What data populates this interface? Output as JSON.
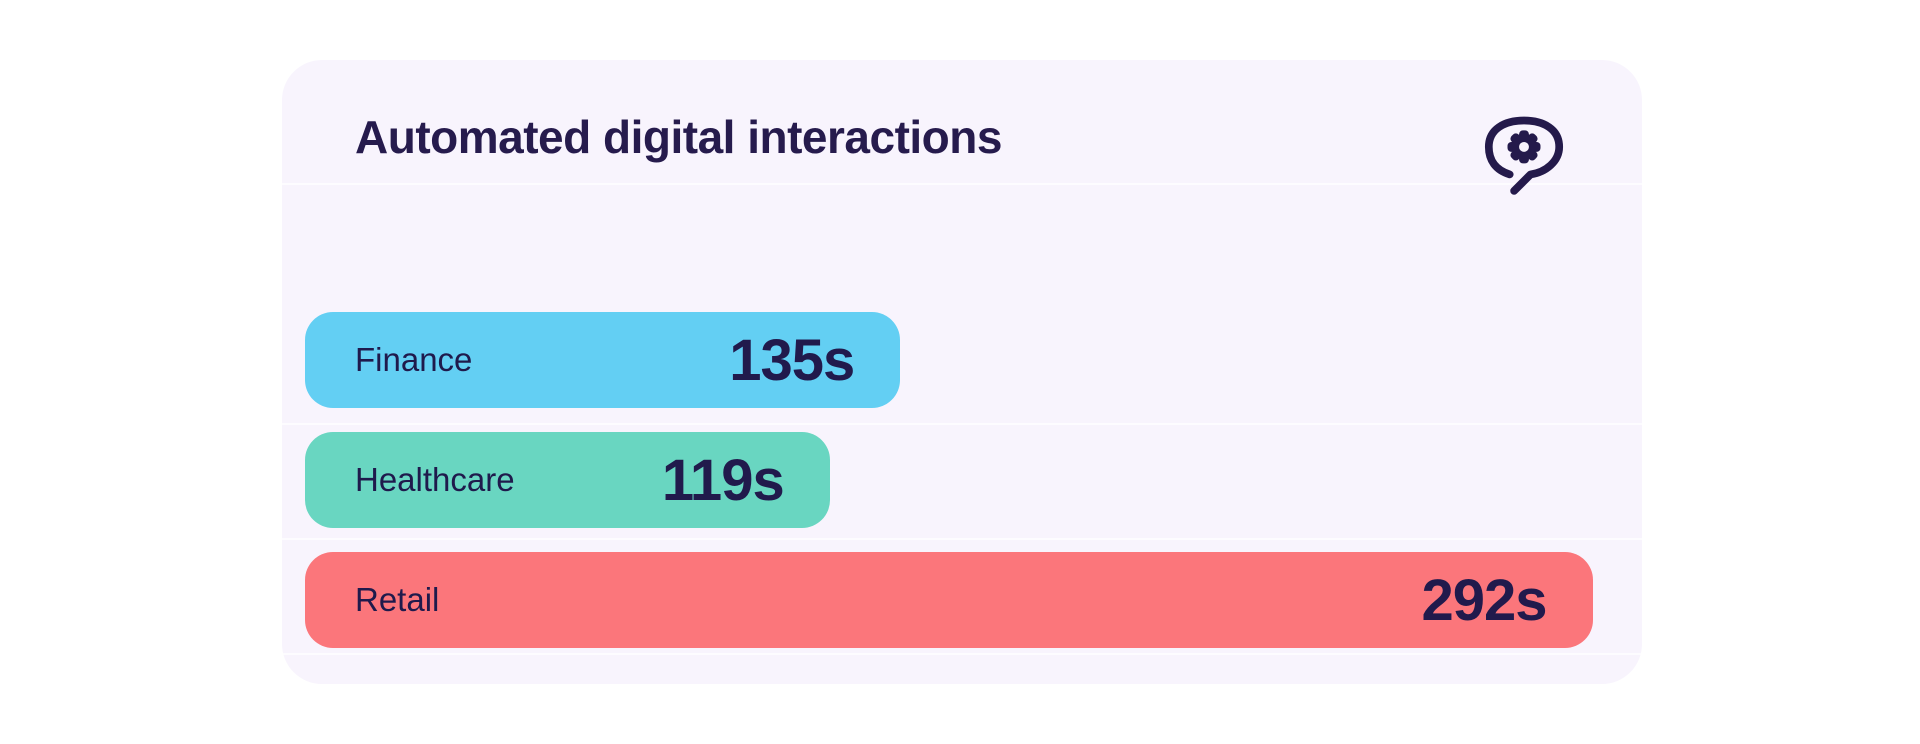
{
  "page": {
    "background_color": "#ffffff"
  },
  "card": {
    "background_color": "#f8f4fd",
    "title": "Automated digital interactions",
    "title_color": "#261b4d",
    "icon": "brain-gear-icon",
    "icon_color": "#241a4b"
  },
  "chart_data": {
    "type": "bar",
    "orientation": "horizontal",
    "title": "Automated digital interactions",
    "categories": [
      "Finance",
      "Healthcare",
      "Retail"
    ],
    "values": [
      135,
      119,
      292
    ],
    "unit": "s",
    "value_labels": [
      "135s",
      "119s",
      "292s"
    ],
    "bar_colors": [
      "#63cff3",
      "#69d6c1",
      "#fb767b"
    ],
    "text_color": "#1f1a4c",
    "xlim": [
      0,
      298
    ],
    "grid": false,
    "legend": false,
    "xlabel": "",
    "ylabel": ""
  }
}
